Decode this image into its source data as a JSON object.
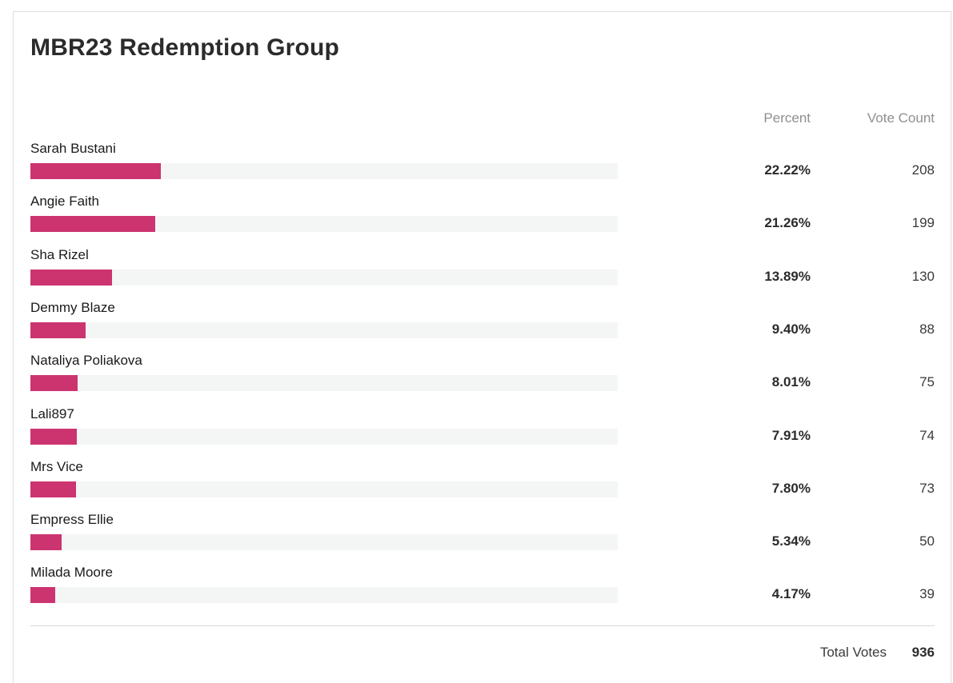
{
  "poll": {
    "title": "MBR23 Redemption Group",
    "column_percent": "Percent",
    "column_votes": "Vote Count",
    "bar_color": "#cc3470",
    "track_color": "#f4f5f5",
    "options": [
      {
        "name": "Sarah Bustani",
        "percent_label": "22.22%",
        "percent": 22.22,
        "votes": "208"
      },
      {
        "name": "Angie Faith",
        "percent_label": "21.26%",
        "percent": 21.26,
        "votes": "199"
      },
      {
        "name": "Sha Rizel",
        "percent_label": "13.89%",
        "percent": 13.89,
        "votes": "130"
      },
      {
        "name": "Demmy Blaze",
        "percent_label": "9.40%",
        "percent": 9.4,
        "votes": "88"
      },
      {
        "name": "Nataliya Poliakova",
        "percent_label": "8.01%",
        "percent": 8.01,
        "votes": "75"
      },
      {
        "name": "Lali897",
        "percent_label": "7.91%",
        "percent": 7.91,
        "votes": "74"
      },
      {
        "name": "Mrs Vice",
        "percent_label": "7.80%",
        "percent": 7.8,
        "votes": "73"
      },
      {
        "name": "Empress Ellie",
        "percent_label": "5.34%",
        "percent": 5.34,
        "votes": "50"
      },
      {
        "name": "Milada Moore",
        "percent_label": "4.17%",
        "percent": 4.17,
        "votes": "39"
      }
    ],
    "total_label": "Total Votes",
    "total_value": "936"
  }
}
